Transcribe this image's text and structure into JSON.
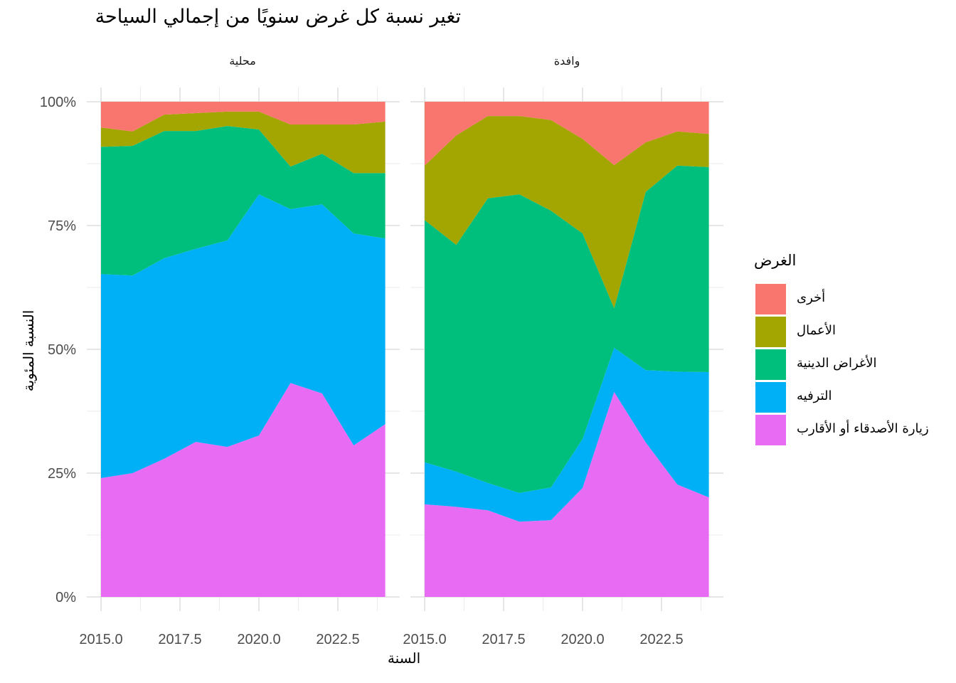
{
  "chart_data": {
    "type": "area",
    "stacked": true,
    "title": "تغير نسبة كل غرض سنويًا من إجمالي السياحة",
    "xlabel": "السنة",
    "ylabel": "النسبة المئوية",
    "legend_title": "الغرض",
    "legend_position": "right",
    "x": [
      2015,
      2016,
      2017,
      2018,
      2019,
      2020,
      2021,
      2022,
      2023,
      2024
    ],
    "x_ticks": [
      "2015.0",
      "2017.5",
      "2020.0",
      "2022.5"
    ],
    "y_ticks": [
      "0%",
      "25%",
      "50%",
      "75%",
      "100%"
    ],
    "ylim": [
      0,
      100
    ],
    "grid": true,
    "categories": [
      {
        "name": "أخرى",
        "color": "#F8766D"
      },
      {
        "name": "الأعمال",
        "color": "#A3A500"
      },
      {
        "name": "الأغراض الدينية",
        "color": "#00BF7D"
      },
      {
        "name": "الترفيه",
        "color": "#00B0F6"
      },
      {
        "name": "زيارة الأصدقاء أو الأقارب",
        "color": "#E76BF3"
      }
    ],
    "facets": [
      {
        "name": "محلية",
        "series": [
          {
            "name": "زيارة الأصدقاء أو الأقارب",
            "values": [
              24.0,
              25.0,
              27.9,
              31.3,
              30.3,
              32.6,
              43.2,
              41.1,
              30.6,
              34.9
            ]
          },
          {
            "name": "الترفيه",
            "values": [
              41.2,
              39.9,
              40.5,
              39.0,
              41.7,
              48.7,
              35.1,
              38.2,
              42.8,
              37.5
            ]
          },
          {
            "name": "الأغراض الدينية",
            "values": [
              25.7,
              26.2,
              25.7,
              23.8,
              23.1,
              13.1,
              8.6,
              10.2,
              12.2,
              13.2
            ]
          },
          {
            "name": "الأعمال",
            "values": [
              3.9,
              2.9,
              3.3,
              3.6,
              2.9,
              3.6,
              8.5,
              5.9,
              9.8,
              10.4
            ]
          },
          {
            "name": "أخرى",
            "values": [
              5.2,
              6.0,
              2.6,
              2.3,
              2.0,
              2.0,
              4.6,
              4.6,
              4.6,
              4.0
            ]
          }
        ]
      },
      {
        "name": "وافدة",
        "series": [
          {
            "name": "زيارة الأصدقاء أو الأقارب",
            "values": [
              18.7,
              18.2,
              17.5,
              15.2,
              15.5,
              22.0,
              41.4,
              31.2,
              22.7,
              20.1
            ]
          },
          {
            "name": "الترفيه",
            "values": [
              8.5,
              7.1,
              5.5,
              5.8,
              6.6,
              9.9,
              8.9,
              14.6,
              22.8,
              25.3
            ]
          },
          {
            "name": "الأغراض الدينية",
            "values": [
              48.9,
              45.8,
              57.5,
              60.3,
              55.9,
              41.5,
              8.0,
              36.0,
              41.6,
              41.4
            ]
          },
          {
            "name": "الأعمال",
            "values": [
              11.0,
              22.1,
              16.6,
              15.8,
              18.3,
              19.1,
              28.9,
              10.0,
              6.9,
              6.7
            ]
          },
          {
            "name": "أخرى",
            "values": [
              12.9,
              6.8,
              2.9,
              2.9,
              3.7,
              7.5,
              12.8,
              8.2,
              6.0,
              6.5
            ]
          }
        ]
      }
    ]
  }
}
